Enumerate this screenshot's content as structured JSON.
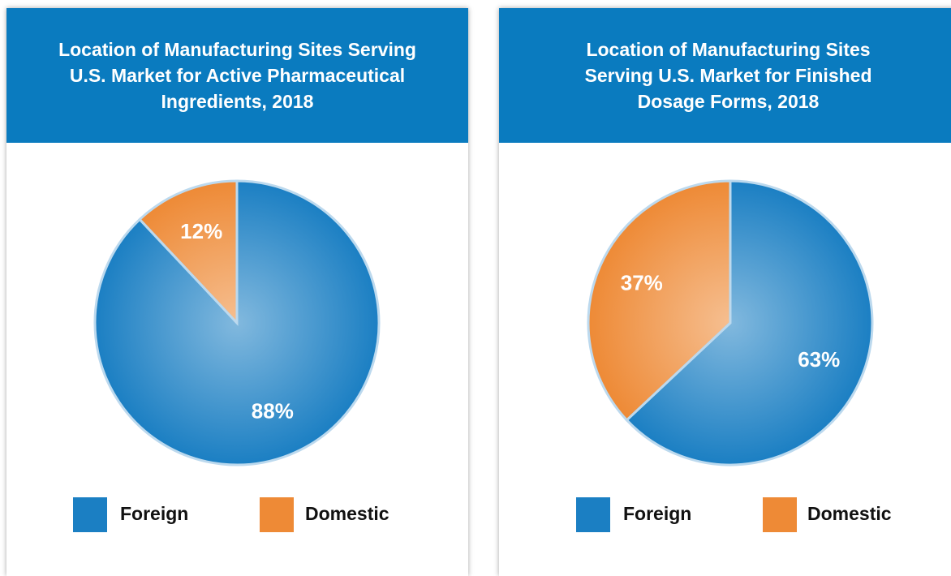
{
  "chart_data": [
    {
      "type": "pie",
      "title": "Location of Manufacturing Sites Serving U.S. Market for Active Pharmaceutical Ingredients, 2018",
      "categories": [
        "Foreign",
        "Domestic"
      ],
      "values": [
        88,
        12
      ],
      "value_labels": [
        "88%",
        "12%"
      ],
      "colors": [
        "#1b7fc3",
        "#ee8a36"
      ]
    },
    {
      "type": "pie",
      "title": "Location of Manufacturing Sites Serving U.S.  Market for Finished Dosage Forms, 2018",
      "categories": [
        "Foreign",
        "Domestic"
      ],
      "values": [
        63,
        37
      ],
      "value_labels": [
        "63%",
        "37%"
      ],
      "colors": [
        "#1b7fc3",
        "#ee8a36"
      ]
    }
  ]
}
